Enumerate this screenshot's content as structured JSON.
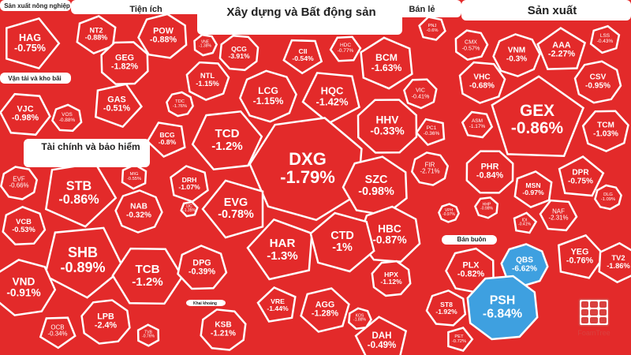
{
  "chart_data": {
    "type": "treemap",
    "colors": {
      "down": "#e32a2a",
      "floor": "#3ea0e0",
      "background": "#f4f4f4",
      "border": "#ffffff"
    },
    "sectors": [
      {
        "id": "s-nong-nghiep",
        "title": "Sản xuất nông nghiệp"
      },
      {
        "id": "s-tien-ich",
        "title": "Tiện ích"
      },
      {
        "id": "s-xay-dung",
        "title": "Xây dựng và Bất động sản"
      },
      {
        "id": "s-ban-le",
        "title": "Bán lẻ"
      },
      {
        "id": "s-san-xuat",
        "title": "Sản xuất"
      },
      {
        "id": "s-van-tai",
        "title": "Vận tải và kho bãi"
      },
      {
        "id": "s-tai-chinh",
        "title": "Tài chính và bảo hiểm"
      },
      {
        "id": "s-ban-buon",
        "title": "Bán buôn"
      },
      {
        "id": "s-khai-khoang",
        "title": "Khai khoáng"
      }
    ],
    "tiles": [
      {
        "ticker": "HAG",
        "change": "-0.75%"
      },
      {
        "ticker": "NT2",
        "change": "-0.88%"
      },
      {
        "ticker": "POW",
        "change": "-0.88%"
      },
      {
        "ticker": "GEG",
        "change": "-1.82%"
      },
      {
        "ticker": "GAS",
        "change": "-0.51%"
      },
      {
        "ticker": "VJC",
        "change": "-0.98%"
      },
      {
        "ticker": "VOS",
        "change": "-0.88%"
      },
      {
        "ticker": "EVF",
        "change": "-0.66%"
      },
      {
        "ticker": "STB",
        "change": "-0.86%"
      },
      {
        "ticker": "MIG",
        "change": "-0.55%"
      },
      {
        "ticker": "VCB",
        "change": "-0.53%"
      },
      {
        "ticker": "NAB",
        "change": "-0.32%"
      },
      {
        "ticker": "SHB",
        "change": "-0.89%"
      },
      {
        "ticker": "TCB",
        "change": "-1.2%"
      },
      {
        "ticker": "VND",
        "change": "-0.91%"
      },
      {
        "ticker": "LPB",
        "change": "-2.4%"
      },
      {
        "ticker": "OCB",
        "change": "-0.34%"
      },
      {
        "ticker": "TVB",
        "change": "-0.76%"
      },
      {
        "ticker": "VNE",
        "change": "-1.38%"
      },
      {
        "ticker": "QCG",
        "change": "-3.91%"
      },
      {
        "ticker": "CII",
        "change": "-0.54%"
      },
      {
        "ticker": "HDC",
        "change": "-0.77%"
      },
      {
        "ticker": "NTL",
        "change": "-1.15%"
      },
      {
        "ticker": "LCG",
        "change": "-1.15%"
      },
      {
        "ticker": "HQC",
        "change": "-1.42%"
      },
      {
        "ticker": "BCM",
        "change": "-1.63%"
      },
      {
        "ticker": "VIC",
        "change": "-0.41%"
      },
      {
        "ticker": "TDC",
        "change": "-1.76%"
      },
      {
        "ticker": "BCG",
        "change": "-0.8%"
      },
      {
        "ticker": "TCD",
        "change": "-1.2%"
      },
      {
        "ticker": "DXG",
        "change": "-1.79%"
      },
      {
        "ticker": "HHV",
        "change": "-0.33%"
      },
      {
        "ticker": "PC1",
        "change": "-0.36%"
      },
      {
        "ticker": "DRH",
        "change": "-1.07%"
      },
      {
        "ticker": "SZC",
        "change": "-0.98%"
      },
      {
        "ticker": "FIR",
        "change": "-2.71%"
      },
      {
        "ticker": "EVG",
        "change": "-0.78%"
      },
      {
        "ticker": "IJC",
        "change": "-1.35%"
      },
      {
        "ticker": "HBC",
        "change": "-0.87%"
      },
      {
        "ticker": "VPH",
        "change": "-0.97%"
      },
      {
        "ticker": "HAR",
        "change": "-1.3%"
      },
      {
        "ticker": "CTD",
        "change": "-1%"
      },
      {
        "ticker": "DPG",
        "change": "-0.39%"
      },
      {
        "ticker": "HPX",
        "change": "-1.12%"
      },
      {
        "ticker": "VRE",
        "change": "-1.44%"
      },
      {
        "ticker": "AGG",
        "change": "-1.28%"
      },
      {
        "ticker": "KOS",
        "change": "-1.88%"
      },
      {
        "ticker": "KSB",
        "change": "-1.21%"
      },
      {
        "ticker": "DAH",
        "change": "-0.49%"
      },
      {
        "ticker": "PNJ",
        "change": "-0.6%"
      },
      {
        "ticker": "CMX",
        "change": "-0.57%"
      },
      {
        "ticker": "VNM",
        "change": "-0.3%"
      },
      {
        "ticker": "AAA",
        "change": "-2.27%"
      },
      {
        "ticker": "LSS",
        "change": "-0.43%"
      },
      {
        "ticker": "VHC",
        "change": "-0.68%"
      },
      {
        "ticker": "CSV",
        "change": "-0.95%"
      },
      {
        "ticker": "GEX",
        "change": "-0.86%"
      },
      {
        "ticker": "ASM",
        "change": "-1.17%"
      },
      {
        "ticker": "TCM",
        "change": "-1.03%"
      },
      {
        "ticker": "PHR",
        "change": "-0.84%"
      },
      {
        "ticker": "DPR",
        "change": "-0.75%"
      },
      {
        "ticker": "MSN",
        "change": "-0.97%"
      },
      {
        "ticker": "HHP",
        "change": "-0.98%"
      },
      {
        "ticker": "DLG",
        "change": "-1.09%"
      },
      {
        "ticker": "IDI",
        "change": "-0.41%"
      },
      {
        "ticker": "NAF",
        "change": "-2.31%"
      },
      {
        "ticker": "PLX",
        "change": "-0.82%"
      },
      {
        "ticker": "QBS",
        "change": "-6.62%"
      },
      {
        "ticker": "YEG",
        "change": "-0.76%"
      },
      {
        "ticker": "TV2",
        "change": "-1.86%"
      },
      {
        "ticker": "ST8",
        "change": "-1.92%"
      },
      {
        "ticker": "PSH",
        "change": "-6.84%"
      },
      {
        "ticker": "PET",
        "change": "-0.72%"
      }
    ]
  },
  "logo": {
    "text": "FoamTree"
  }
}
